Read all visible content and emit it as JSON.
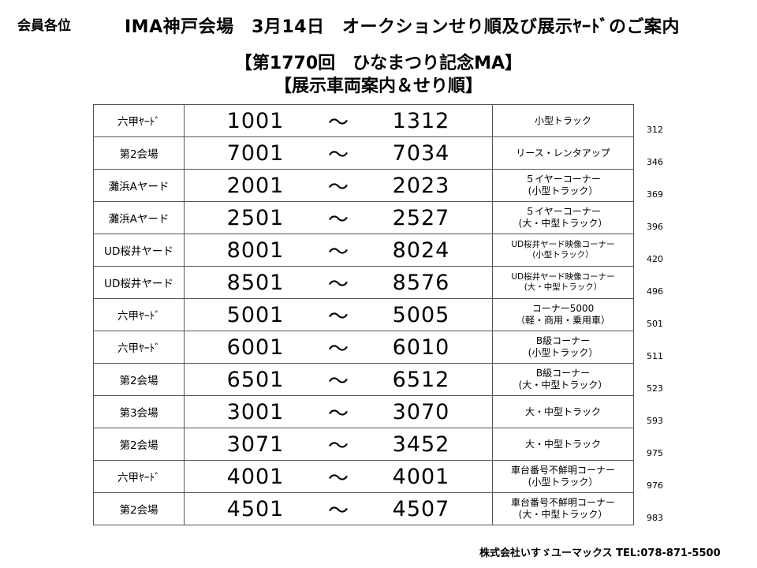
{
  "header": {
    "addressee": "会員各位",
    "title": "IMA神戸会場　3月14日　オークションせり順及び展示ﾔｰﾄﾞのご案内",
    "subtitle_1": "【第1770回　ひなまつり記念MA】",
    "subtitle_2": "【展示車両案内＆せり順】"
  },
  "tilde": "～",
  "rows": [
    {
      "venue": "六甲ﾔｰﾄﾞ",
      "from": "1001",
      "to": "1312",
      "cat1": "小型トラック",
      "cat2": "",
      "count": "312"
    },
    {
      "venue": "第2会場",
      "from": "7001",
      "to": "7034",
      "cat1": "リース・レンタアップ",
      "cat2": "",
      "count": "346"
    },
    {
      "venue": "灘浜Aヤード",
      "from": "2001",
      "to": "2023",
      "cat1": "５イヤーコーナー",
      "cat2": "(小型トラック）",
      "count": "369"
    },
    {
      "venue": "灘浜Aヤード",
      "from": "2501",
      "to": "2527",
      "cat1": "５イヤーコーナー",
      "cat2": "(大・中型トラック）",
      "count": "396"
    },
    {
      "venue": "UD桜井ヤード",
      "from": "8001",
      "to": "8024",
      "cat1": "UD桜井ヤード映像コーナー",
      "cat2": "(小型トラック）",
      "count": "420"
    },
    {
      "venue": "UD桜井ヤード",
      "from": "8501",
      "to": "8576",
      "cat1": "UD桜井ヤード映像コーナー",
      "cat2": "(大・中型トラック）",
      "count": "496"
    },
    {
      "venue": "六甲ﾔｰﾄﾞ",
      "from": "5001",
      "to": "5005",
      "cat1": "コーナー5000",
      "cat2": "（軽・商用・乗用車）",
      "count": "501"
    },
    {
      "venue": "六甲ﾔｰﾄﾞ",
      "from": "6001",
      "to": "6010",
      "cat1": "B級コーナー",
      "cat2": "(小型トラック）",
      "count": "511"
    },
    {
      "venue": "第2会場",
      "from": "6501",
      "to": "6512",
      "cat1": "B級コーナー",
      "cat2": "(大・中型トラック）",
      "count": "523"
    },
    {
      "venue": "第3会場",
      "from": "3001",
      "to": "3070",
      "cat1": "大・中型トラック",
      "cat2": "",
      "count": "593"
    },
    {
      "venue": "第2会場",
      "from": "3071",
      "to": "3452",
      "cat1": "大・中型トラック",
      "cat2": "",
      "count": "975"
    },
    {
      "venue": "六甲ﾔｰﾄﾞ",
      "from": "4001",
      "to": "4001",
      "cat1": "車台番号不鮮明コーナー",
      "cat2": "(小型トラック）",
      "count": "976"
    },
    {
      "venue": "第2会場",
      "from": "4501",
      "to": "4507",
      "cat1": "車台番号不鮮明コーナー",
      "cat2": "(大・中型トラック）",
      "count": "983"
    }
  ],
  "footer": {
    "company": "株式会社いすゞユーマックス TEL:078-871-5500"
  }
}
